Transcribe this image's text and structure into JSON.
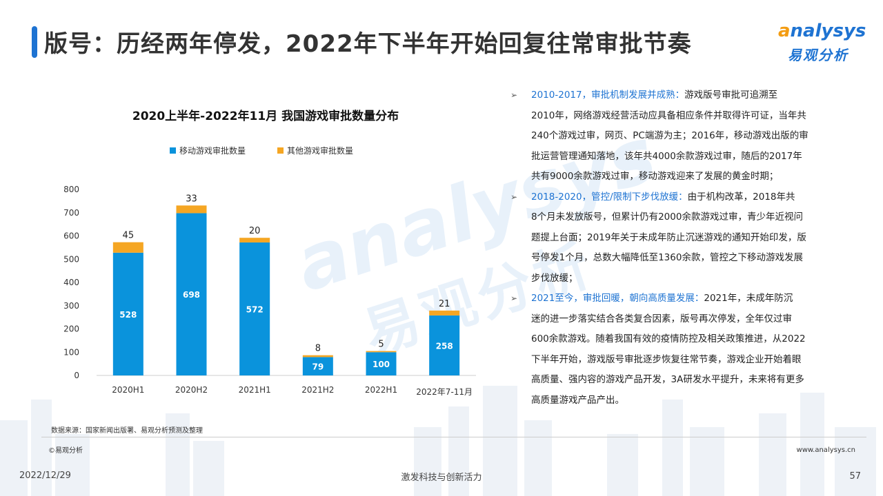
{
  "title": "版号：历经两年停发，2022年下半年开始回复往常审批节奏",
  "logo": {
    "word_a": "a",
    "word_rest": "nalysys",
    "cn": "易观分析"
  },
  "watermark": {
    "en": "analysys",
    "cn": "易观分析"
  },
  "chart_data": {
    "type": "bar",
    "stacked": true,
    "title": "2020上半年-2022年11月 我国游戏审批数量分布",
    "categories": [
      "2020H1",
      "2020H2",
      "2021H1",
      "2021H2",
      "2022H1",
      "2022年7-11月"
    ],
    "series": [
      {
        "name": "移动游戏审批数量",
        "color": "#0a93dc",
        "values": [
          528,
          698,
          572,
          79,
          100,
          258
        ]
      },
      {
        "name": "其他游戏审批数量",
        "color": "#f5a623",
        "values": [
          45,
          33,
          20,
          8,
          5,
          21
        ]
      }
    ],
    "yticks": [
      0,
      100,
      200,
      300,
      400,
      500,
      600,
      700,
      800
    ],
    "ylim": [
      0,
      800
    ],
    "grid": false,
    "legend": "top"
  },
  "bullets": [
    {
      "head": "2010-2017，审批机制发展并成熟：",
      "lines": [
        "游戏版号审批可追溯至",
        "2010年，网络游戏经营活动应具备相应条件并取得许可证，当年共",
        "240个游戏过审，网页、PC端游为主；2016年，移动游戏出版的审",
        "批运营管理通知落地，该年共4000余款游戏过审，随后的2017年",
        "共有9000余款游戏过审，移动游戏迎来了发展的黄金时期；"
      ]
    },
    {
      "head": "2018-2020，管控/限制下步伐放缓：",
      "lines": [
        "由于机构改革，2018年共",
        "8个月未发放版号，但累计仍有2000余款游戏过审，青少年近视问",
        "题提上台面；2019年关于未成年防止沉迷游戏的通知开始印发，版",
        "号停发1个月，总数大幅降低至1360余款，管控之下移动游戏发展",
        "步伐放缓；"
      ]
    },
    {
      "head": "2021至今，审批回暖，朝向高质量发展：",
      "lines": [
        "2021年，未成年防沉",
        "迷的进一步落实结合各类复合因素，版号再次停发，全年仅过审",
        "600余款游戏。随着我国有效的疫情防控及相关政策推进，从2022",
        "下半年开始，游戏版号审批逐步恢复往常节奏，游戏企业开始着眼",
        "高质量、强内容的游戏产品开发，3A研发水平提升，未来将有更多",
        "高质量游戏产品产出。"
      ]
    }
  ],
  "footer": {
    "source": "数据来源：国家新闻出版署、易观分析预测及整理",
    "copyright": "©易观分析",
    "site": "www.analysys.cn",
    "date": "2022/12/29",
    "slogan": "激发科技与创新活力",
    "page": "57"
  }
}
